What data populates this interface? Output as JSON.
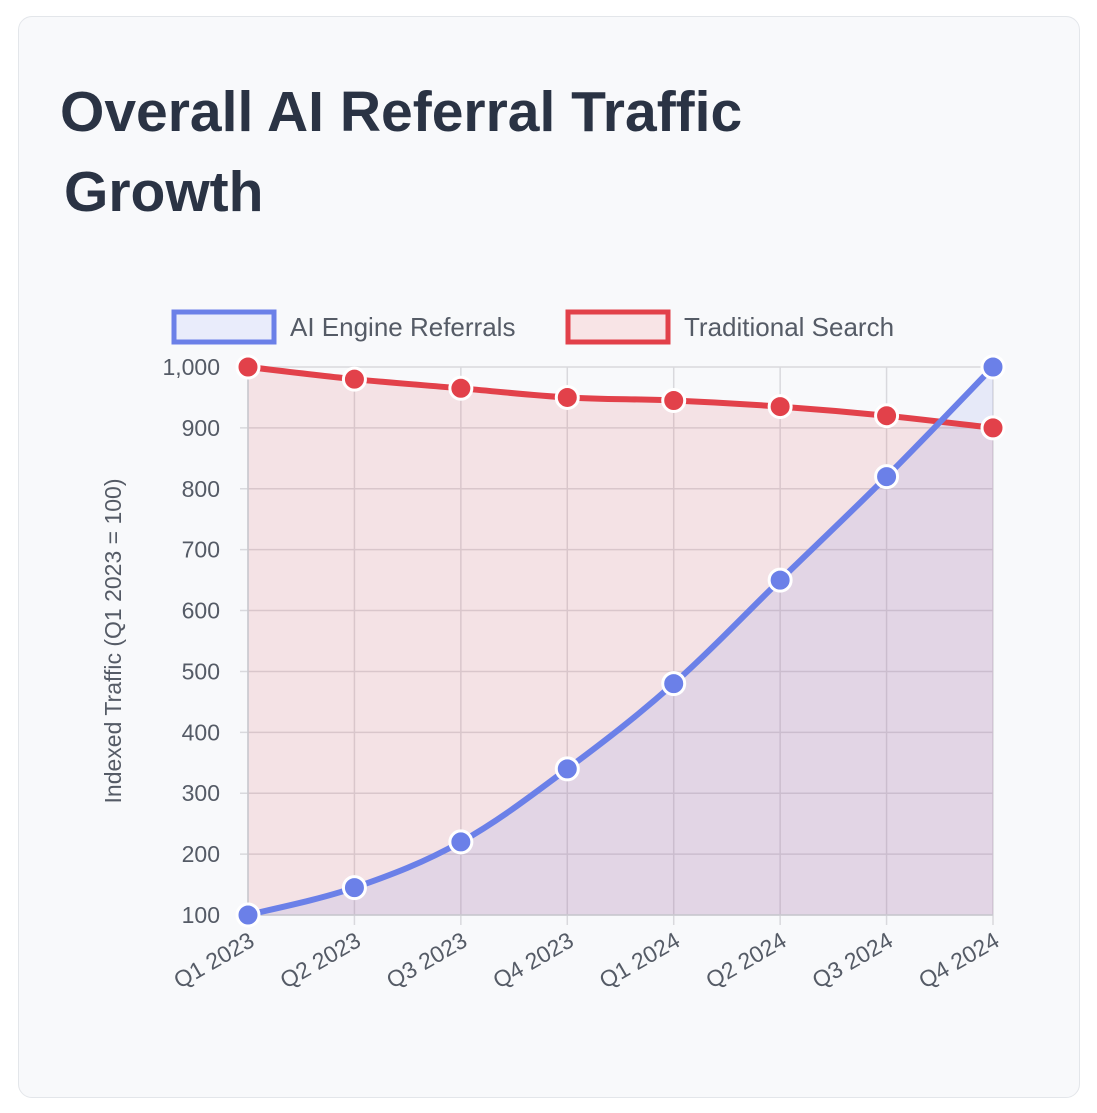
{
  "title_line1": "Overall AI Referral Traffic",
  "title_line2": "Growth",
  "chart_data": {
    "type": "line",
    "title": "Overall AI Referral Traffic Growth",
    "categories": [
      "Q1 2023",
      "Q2 2023",
      "Q3 2023",
      "Q4 2023",
      "Q1 2024",
      "Q2 2024",
      "Q3 2024",
      "Q4 2024"
    ],
    "series": [
      {
        "name": "AI Engine Referrals",
        "values": [
          100,
          145,
          220,
          340,
          480,
          650,
          820,
          1000
        ],
        "color": "#6b80e8",
        "fill": "#e9ecfb"
      },
      {
        "name": "Traditional Search",
        "values": [
          1000,
          980,
          965,
          950,
          945,
          935,
          920,
          900
        ],
        "color": "#e2414a",
        "fill": "#f8e4e6"
      }
    ],
    "ylabel": "Indexed Traffic (Q1 2023 = 100)",
    "xlabel": "",
    "ylim": [
      100,
      1000
    ],
    "yticks": [
      100,
      200,
      300,
      400,
      500,
      600,
      700,
      800,
      900,
      1000
    ],
    "ytick_labels": [
      "100",
      "200",
      "300",
      "400",
      "500",
      "600",
      "700",
      "800",
      "900",
      "1,000"
    ],
    "legend_position": "top",
    "grid": true,
    "filled": true,
    "smooth": true
  }
}
